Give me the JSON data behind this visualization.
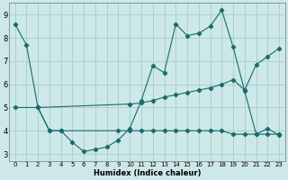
{
  "xlabel": "Humidex (Indice chaleur)",
  "xlim": [
    -0.5,
    23.5
  ],
  "ylim": [
    2.7,
    9.5
  ],
  "yticks": [
    3,
    4,
    5,
    6,
    7,
    8,
    9
  ],
  "xticks": [
    0,
    1,
    2,
    3,
    4,
    5,
    6,
    7,
    8,
    9,
    10,
    11,
    12,
    13,
    14,
    15,
    16,
    17,
    18,
    19,
    20,
    21,
    22,
    23
  ],
  "bg_color": "#cce8e8",
  "grid_color": "#aacccc",
  "line_color": "#1a6b6b",
  "line1_x": [
    0,
    1,
    2,
    3,
    4,
    5,
    6,
    7,
    8,
    9,
    10,
    11,
    12,
    13,
    14,
    15,
    16,
    17,
    18,
    19,
    20,
    21,
    22,
    23
  ],
  "line1_y": [
    8.6,
    7.7,
    5.0,
    4.0,
    4.0,
    3.5,
    3.1,
    3.2,
    3.3,
    3.6,
    4.1,
    5.3,
    6.8,
    6.5,
    8.6,
    8.1,
    8.2,
    8.5,
    9.2,
    7.6,
    5.7,
    3.85,
    4.1,
    3.8
  ],
  "line2_x": [
    0,
    2,
    10,
    11,
    12,
    13,
    14,
    15,
    16,
    17,
    18,
    19,
    20,
    21,
    22,
    23
  ],
  "line2_y": [
    5.0,
    5.0,
    5.15,
    5.2,
    5.3,
    5.45,
    5.55,
    5.65,
    5.75,
    5.85,
    6.0,
    6.2,
    5.75,
    6.85,
    7.2,
    7.55
  ],
  "line3_x": [
    2,
    3,
    4,
    9,
    10,
    11,
    12,
    13,
    14,
    15,
    16,
    17,
    18,
    19,
    20,
    21,
    22,
    23
  ],
  "line3_y": [
    5.0,
    4.0,
    4.0,
    4.0,
    4.0,
    4.0,
    4.0,
    4.0,
    4.0,
    4.0,
    4.0,
    4.0,
    4.0,
    3.85,
    3.85,
    3.85,
    3.85,
    3.85
  ]
}
